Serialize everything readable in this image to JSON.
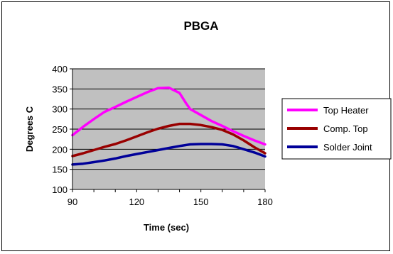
{
  "chart_data": {
    "type": "line",
    "title": "PBGA",
    "xlabel": "Time (sec)",
    "ylabel": "Degrees C",
    "xlim": [
      90,
      180
    ],
    "ylim": [
      100,
      400
    ],
    "xticks": [
      90,
      120,
      150,
      180
    ],
    "yticks": [
      100,
      150,
      200,
      250,
      300,
      350,
      400
    ],
    "grid": "horizontal",
    "legend_position": "right",
    "series": [
      {
        "name": "Top Heater",
        "color": "#ff00ff",
        "x": [
          90,
          95,
          100,
          105,
          110,
          115,
          120,
          125,
          130,
          135,
          140,
          143,
          145,
          150,
          155,
          160,
          165,
          170,
          175,
          180
        ],
        "y": [
          235,
          256,
          275,
          293,
          305,
          318,
          330,
          342,
          352,
          353,
          340,
          315,
          300,
          285,
          270,
          258,
          245,
          233,
          222,
          212
        ]
      },
      {
        "name": "Comp. Top",
        "color": "#990000",
        "x": [
          90,
          95,
          100,
          105,
          110,
          115,
          120,
          125,
          130,
          135,
          140,
          145,
          150,
          155,
          160,
          165,
          170,
          175,
          180
        ],
        "y": [
          183,
          190,
          198,
          206,
          213,
          222,
          232,
          242,
          251,
          258,
          263,
          263,
          260,
          255,
          248,
          237,
          222,
          205,
          190
        ]
      },
      {
        "name": "Solder Joint",
        "color": "#000099",
        "x": [
          90,
          95,
          100,
          105,
          110,
          115,
          120,
          125,
          130,
          135,
          140,
          145,
          150,
          155,
          160,
          165,
          170,
          175,
          180
        ],
        "y": [
          162,
          164,
          168,
          172,
          177,
          183,
          188,
          193,
          198,
          203,
          208,
          212,
          213,
          213,
          212,
          208,
          200,
          192,
          182
        ]
      }
    ]
  }
}
